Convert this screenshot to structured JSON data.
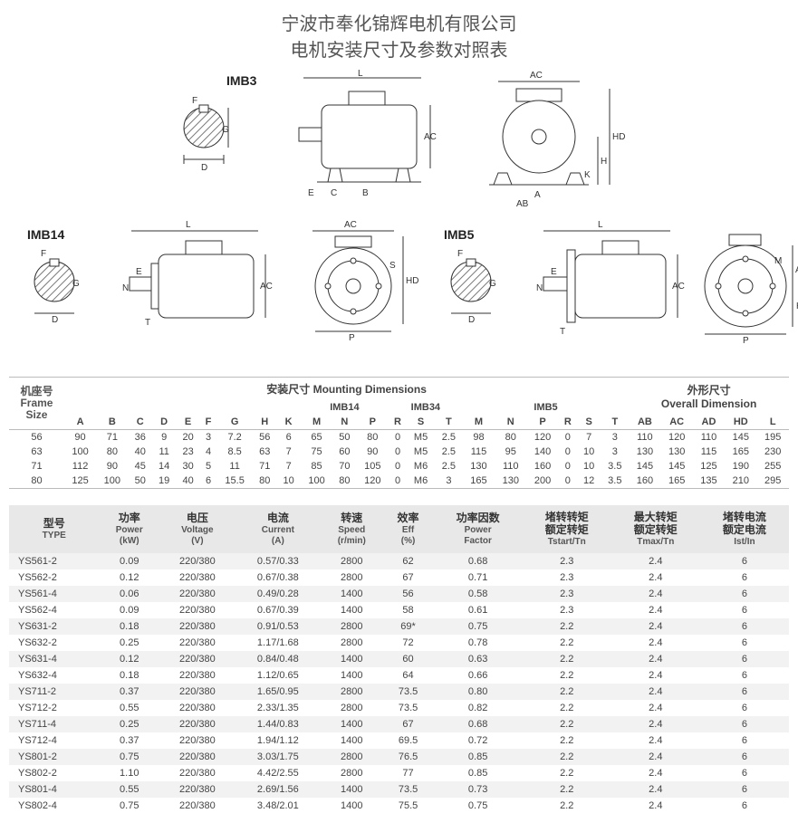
{
  "title": {
    "company": "宁波市奉化锦辉电机有限公司",
    "subtitle": "电机安装尺寸及参数对照表"
  },
  "diagram_labels": {
    "imb3": "IMB3",
    "imb14": "IMB14",
    "imb5": "IMB5"
  },
  "diagram_style": {
    "stroke": "#333333",
    "hatch_fill": "#888888",
    "bg": "#ffffff",
    "dim_fontsize": 10
  },
  "mounting": {
    "header_top": {
      "frame": "机座号\nFrame\nSize",
      "mount": "安装尺寸 Mounting Dimensions",
      "overall": "外形尺寸\nOverall Dimension"
    },
    "subheaders": {
      "imb14": "IMB14",
      "imb34": "IMB34",
      "imb5": "IMB5"
    },
    "cols": [
      "A",
      "B",
      "C",
      "D",
      "E",
      "F",
      "G",
      "H",
      "K",
      "M",
      "N",
      "P",
      "R",
      "S",
      "T",
      "M",
      "N",
      "P",
      "R",
      "S",
      "T",
      "AB",
      "AC",
      "AD",
      "HD",
      "L"
    ],
    "rows": [
      {
        "size": "56",
        "v": [
          "90",
          "71",
          "36",
          "9",
          "20",
          "3",
          "7.2",
          "56",
          "6",
          "65",
          "50",
          "80",
          "0",
          "M5",
          "2.5",
          "98",
          "80",
          "120",
          "0",
          "7",
          "3",
          "110",
          "120",
          "110",
          "145",
          "195"
        ]
      },
      {
        "size": "63",
        "v": [
          "100",
          "80",
          "40",
          "11",
          "23",
          "4",
          "8.5",
          "63",
          "7",
          "75",
          "60",
          "90",
          "0",
          "M5",
          "2.5",
          "115",
          "95",
          "140",
          "0",
          "10",
          "3",
          "130",
          "130",
          "115",
          "165",
          "230"
        ]
      },
      {
        "size": "71",
        "v": [
          "112",
          "90",
          "45",
          "14",
          "30",
          "5",
          "11",
          "71",
          "7",
          "85",
          "70",
          "105",
          "0",
          "M6",
          "2.5",
          "130",
          "110",
          "160",
          "0",
          "10",
          "3.5",
          "145",
          "145",
          "125",
          "190",
          "255"
        ]
      },
      {
        "size": "80",
        "v": [
          "125",
          "100",
          "50",
          "19",
          "40",
          "6",
          "15.5",
          "80",
          "10",
          "100",
          "80",
          "120",
          "0",
          "M6",
          "3",
          "165",
          "130",
          "200",
          "0",
          "12",
          "3.5",
          "160",
          "165",
          "135",
          "210",
          "295"
        ]
      }
    ]
  },
  "params": {
    "headers": [
      {
        "cn": "型号",
        "en": "TYPE"
      },
      {
        "cn": "功率",
        "en": "Power\n(kW)"
      },
      {
        "cn": "电压",
        "en": "Voltage\n(V)"
      },
      {
        "cn": "电流",
        "en": "Current\n(A)"
      },
      {
        "cn": "转速",
        "en": "Speed\n(r/min)"
      },
      {
        "cn": "效率",
        "en": "Eff\n(%)"
      },
      {
        "cn": "功率因数",
        "en": "Power\nFactor"
      },
      {
        "cn": "堵转转矩\n额定转矩",
        "en": "Tstart/Tn"
      },
      {
        "cn": "最大转矩\n额定转矩",
        "en": "Tmax/Tn"
      },
      {
        "cn": "堵转电流\n额定电流",
        "en": "Ist/In"
      }
    ],
    "rows": [
      [
        "YS561-2",
        "0.09",
        "220/380",
        "0.57/0.33",
        "2800",
        "62",
        "0.68",
        "2.3",
        "2.4",
        "6"
      ],
      [
        "YS562-2",
        "0.12",
        "220/380",
        "0.67/0.38",
        "2800",
        "67",
        "0.71",
        "2.3",
        "2.4",
        "6"
      ],
      [
        "YS561-4",
        "0.06",
        "220/380",
        "0.49/0.28",
        "1400",
        "56",
        "0.58",
        "2.3",
        "2.4",
        "6"
      ],
      [
        "YS562-4",
        "0.09",
        "220/380",
        "0.67/0.39",
        "1400",
        "58",
        "0.61",
        "2.3",
        "2.4",
        "6"
      ],
      [
        "YS631-2",
        "0.18",
        "220/380",
        "0.91/0.53",
        "2800",
        "69*",
        "0.75",
        "2.2",
        "2.4",
        "6"
      ],
      [
        "YS632-2",
        "0.25",
        "220/380",
        "1.17/1.68",
        "2800",
        "72",
        "0.78",
        "2.2",
        "2.4",
        "6"
      ],
      [
        "YS631-4",
        "0.12",
        "220/380",
        "0.84/0.48",
        "1400",
        "60",
        "0.63",
        "2.2",
        "2.4",
        "6"
      ],
      [
        "YS632-4",
        "0.18",
        "220/380",
        "1.12/0.65",
        "1400",
        "64",
        "0.66",
        "2.2",
        "2.4",
        "6"
      ],
      [
        "YS711-2",
        "0.37",
        "220/380",
        "1.65/0.95",
        "2800",
        "73.5",
        "0.80",
        "2.2",
        "2.4",
        "6"
      ],
      [
        "YS712-2",
        "0.55",
        "220/380",
        "2.33/1.35",
        "2800",
        "73.5",
        "0.82",
        "2.2",
        "2.4",
        "6"
      ],
      [
        "YS711-4",
        "0.25",
        "220/380",
        "1.44/0.83",
        "1400",
        "67",
        "0.68",
        "2.2",
        "2.4",
        "6"
      ],
      [
        "YS712-4",
        "0.37",
        "220/380",
        "1.94/1.12",
        "1400",
        "69.5",
        "0.72",
        "2.2",
        "2.4",
        "6"
      ],
      [
        "YS801-2",
        "0.75",
        "220/380",
        "3.03/1.75",
        "2800",
        "76.5",
        "0.85",
        "2.2",
        "2.4",
        "6"
      ],
      [
        "YS802-2",
        "1.10",
        "220/380",
        "4.42/2.55",
        "2800",
        "77",
        "0.85",
        "2.2",
        "2.4",
        "6"
      ],
      [
        "YS801-4",
        "0.55",
        "220/380",
        "2.69/1.56",
        "1400",
        "73.5",
        "0.73",
        "2.2",
        "2.4",
        "6"
      ],
      [
        "YS802-4",
        "0.75",
        "220/380",
        "3.48/2.01",
        "1400",
        "75.5",
        "0.75",
        "2.2",
        "2.4",
        "6"
      ]
    ]
  },
  "colors": {
    "text": "#444444",
    "header_bg": "#e8e8e8",
    "alt_row": "#f2f2f2",
    "border": "#bbbbbb"
  }
}
